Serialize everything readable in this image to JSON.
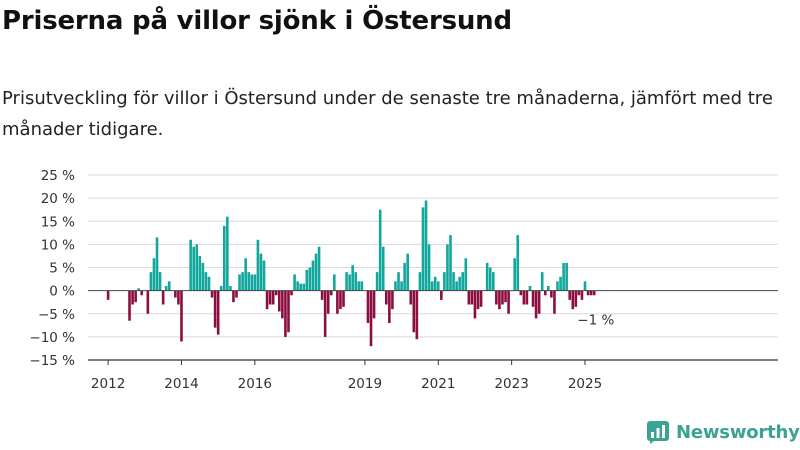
{
  "title": "Priserna på villor sjönk i Östersund",
  "subtitle": "Prisutveckling för villor i Östersund under de senaste tre månaderna, jämfört med tre månader tidigare.",
  "brand": "Newsworthy",
  "colors": {
    "positive": "#12a79d",
    "negative": "#8c0d3f",
    "grid": "#d9d9d9",
    "brand": "#3aa394"
  },
  "chart_data": {
    "type": "bar",
    "x_unit": "month",
    "x_start": "2011-11",
    "ylim": [
      -15,
      25
    ],
    "yticks": [
      25,
      20,
      15,
      10,
      5,
      0,
      -5,
      -10,
      -15
    ],
    "ytick_labels": [
      "25 %",
      "20 %",
      "15 %",
      "10 %",
      "5 %",
      "0 %",
      "−5 %",
      "−10 %",
      "−15 %"
    ],
    "xticks": [
      {
        "date": "2012-01",
        "label": "2012"
      },
      {
        "date": "2014-01",
        "label": "2014"
      },
      {
        "date": "2016-01",
        "label": "2016"
      },
      {
        "date": "2019-01",
        "label": "2019"
      },
      {
        "date": "2021-01",
        "label": "2021"
      },
      {
        "date": "2023-01",
        "label": "2023"
      },
      {
        "date": "2025-01",
        "label": "2025"
      }
    ],
    "annotation": {
      "text": "−1 %",
      "date": "2025-06",
      "value": -1
    },
    "values": [
      null,
      null,
      -2,
      null,
      null,
      null,
      null,
      null,
      null,
      -6.5,
      -3,
      -2.5,
      0.5,
      -1,
      null,
      -5,
      4,
      7,
      11.5,
      4,
      -3,
      1,
      2,
      null,
      -1.5,
      -3,
      -11,
      null,
      null,
      11,
      9.5,
      10,
      7.5,
      6,
      4,
      3,
      -1.5,
      -8,
      -9.5,
      1,
      14,
      16,
      1,
      -2.5,
      -1.5,
      3.5,
      4,
      7,
      4,
      3.5,
      3.5,
      11,
      8,
      6.5,
      -4,
      -3,
      -3,
      -1,
      -4.5,
      -6,
      -10,
      -9,
      -1,
      3.5,
      2,
      1.5,
      1.5,
      4.5,
      5,
      6.5,
      8,
      9.5,
      -2,
      -10,
      -5,
      -1,
      3.5,
      -5,
      -4,
      -3.5,
      4,
      3.5,
      5.5,
      4,
      2,
      2,
      null,
      -7,
      -12,
      -6,
      4,
      17.5,
      9.5,
      -3,
      -7,
      -4,
      2,
      4,
      2,
      6,
      8,
      -3,
      -9,
      -10.5,
      4,
      18,
      19.5,
      10,
      2,
      3,
      2,
      -2,
      4,
      10,
      12,
      4,
      2,
      3,
      4,
      7,
      -3,
      -3,
      -6,
      -4,
      -3.5,
      null,
      6,
      5,
      4,
      -3,
      -4,
      -3,
      -2.5,
      -5,
      null,
      7,
      12,
      -1,
      -3,
      -3,
      1,
      -3.5,
      -6,
      -5,
      4,
      -1,
      1,
      -1.5,
      -5,
      2,
      3,
      6,
      6,
      -2,
      -4,
      -3.5,
      -1,
      -2,
      2,
      -1,
      -1,
      -1
    ]
  }
}
